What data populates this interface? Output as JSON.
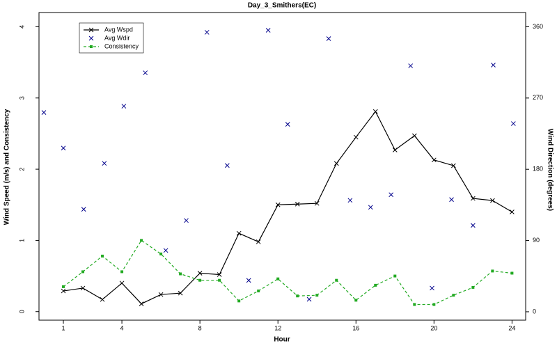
{
  "chart_data": {
    "type": "line",
    "title": "Day_3_Smithers(EC)",
    "xlabel": "Hour",
    "ylabel": "Wind Speed (m/s) and Consistency",
    "y2label": "Wind Direction (degrees)",
    "xlim": [
      -0.25,
      24.7
    ],
    "ylim": [
      -0.12,
      4.2
    ],
    "y2lim": [
      -10.6,
      378
    ],
    "xticks": [
      1,
      4,
      8,
      12,
      16,
      20,
      24
    ],
    "yticks": [
      0,
      1,
      2,
      3,
      4
    ],
    "y2ticks": [
      0,
      90,
      180,
      270,
      360
    ],
    "legend": "upper left",
    "series": [
      {
        "name": "Avg Wspd",
        "color": "#000000",
        "marker": "x",
        "linestyle": "solid",
        "x": [
          1,
          2,
          3,
          4,
          5,
          6,
          7,
          8,
          9,
          10,
          11,
          12,
          13,
          14,
          15,
          16,
          17,
          18,
          19,
          20,
          21,
          22,
          23,
          24
        ],
        "values": [
          0.29,
          0.33,
          0.17,
          0.4,
          0.11,
          0.24,
          0.26,
          0.54,
          0.52,
          1.1,
          0.98,
          1.5,
          1.51,
          1.52,
          2.08,
          2.45,
          2.81,
          2.27,
          2.47,
          2.13,
          2.05,
          1.59,
          1.56,
          1.4
        ]
      },
      {
        "name": "Avg Wdir",
        "color": "#00008b",
        "marker": "x",
        "linestyle": "none",
        "axis": "y2",
        "x": [
          0,
          1,
          2.04,
          3.1,
          4.1,
          5.2,
          6.25,
          7.3,
          8.36,
          9.4,
          10.5,
          11.5,
          12.5,
          13.6,
          14.6,
          15.7,
          16.75,
          17.8,
          18.8,
          19.9,
          20.9,
          22,
          23.04,
          24.07
        ],
        "values": [
          251.7,
          206.8,
          129.4,
          187.5,
          259.7,
          301.9,
          77.5,
          115.3,
          353.0,
          184.8,
          39.6,
          355.6,
          236.8,
          15.8,
          345.0,
          140.8,
          132.0,
          147.9,
          310.7,
          29.9,
          141.7,
          109.1,
          311.6,
          237.7
        ]
      },
      {
        "name": "Consistency",
        "color": "#22aa22",
        "marker": "square",
        "linestyle": "dashed",
        "x": [
          1,
          2,
          3,
          4,
          5,
          6,
          7,
          8,
          9,
          10,
          11,
          12,
          13,
          14,
          15,
          16,
          17,
          18,
          19,
          20,
          21,
          22,
          23,
          24
        ],
        "values": [
          0.35,
          0.56,
          0.78,
          0.56,
          1.0,
          0.81,
          0.53,
          0.44,
          0.44,
          0.15,
          0.29,
          0.46,
          0.22,
          0.23,
          0.44,
          0.16,
          0.37,
          0.5,
          0.1,
          0.1,
          0.23,
          0.34,
          0.57,
          0.54
        ]
      }
    ]
  }
}
